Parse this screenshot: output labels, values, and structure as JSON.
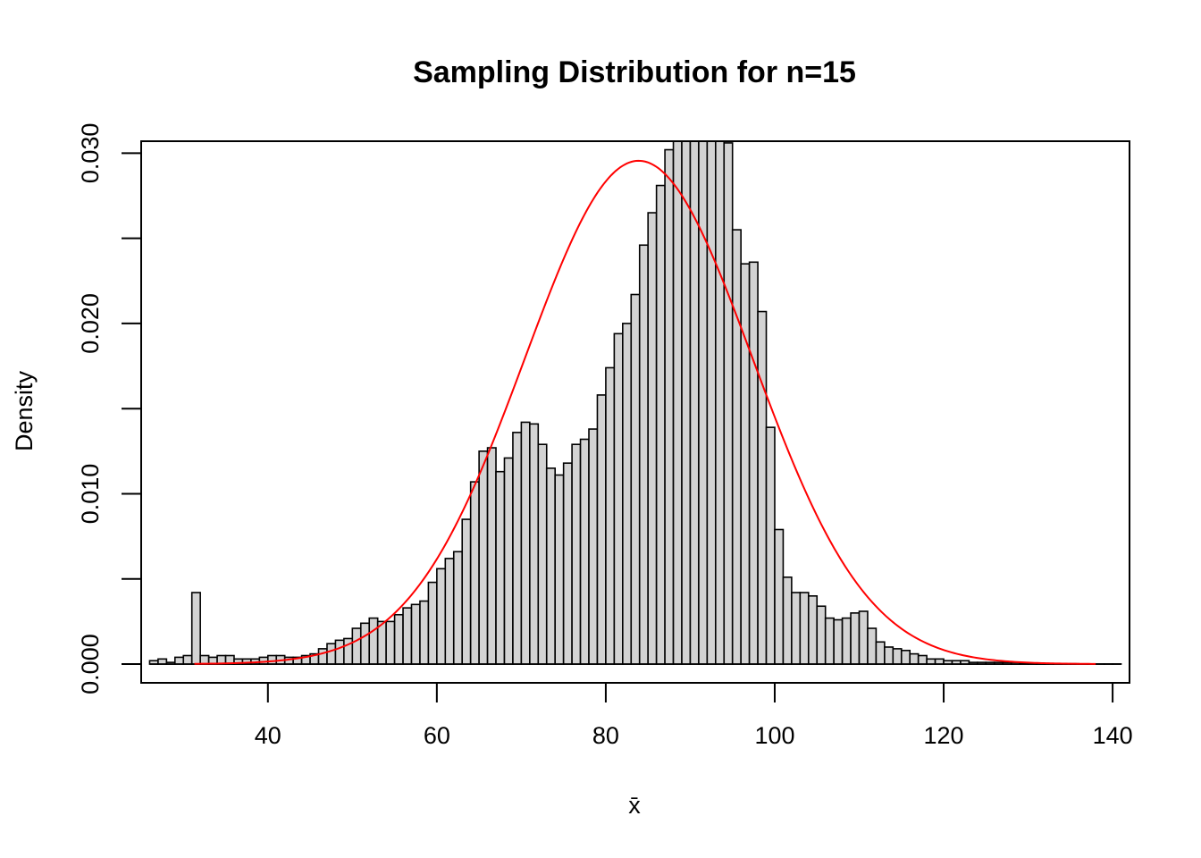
{
  "chart_data": {
    "type": "bar",
    "title": "Sampling Distribution for n=15",
    "xlabel": "x̄",
    "ylabel": "Density",
    "xlim": [
      25,
      142
    ],
    "ylim": [
      -0.0011,
      0.0307
    ],
    "x_ticks": [
      40,
      60,
      80,
      100,
      120,
      140
    ],
    "x_tick_labels": [
      "40",
      "60",
      "80",
      "100",
      "120",
      "140"
    ],
    "y_ticks": [
      0,
      0.005,
      0.01,
      0.015,
      0.02,
      0.025,
      0.03
    ],
    "y_tick_labels": [
      "0.000",
      "",
      "0.010",
      "",
      "0.020",
      "",
      "0.030"
    ],
    "bin_width": 1,
    "bin_start": 26,
    "bar_color": "#d3d3d3",
    "values": [
      0.0002,
      0.0003,
      0.0001,
      0.0004,
      0.0005,
      0.0042,
      0.0005,
      0.0004,
      0.0005,
      0.0005,
      0.0003,
      0.0003,
      0.0003,
      0.0004,
      0.0005,
      0.0005,
      0.0004,
      0.0004,
      0.0005,
      0.0006,
      0.0009,
      0.0012,
      0.0014,
      0.0015,
      0.0021,
      0.0024,
      0.0027,
      0.0025,
      0.0025,
      0.0029,
      0.0033,
      0.0035,
      0.0037,
      0.0048,
      0.0056,
      0.0062,
      0.0066,
      0.0085,
      0.0107,
      0.0125,
      0.0127,
      0.0113,
      0.0121,
      0.0136,
      0.0142,
      0.0141,
      0.0129,
      0.0115,
      0.0111,
      0.0118,
      0.0129,
      0.0132,
      0.0138,
      0.0158,
      0.0174,
      0.0194,
      0.02,
      0.0217,
      0.0246,
      0.0265,
      0.0281,
      0.0302,
      0.0318,
      0.0331,
      0.0341,
      0.0339,
      0.0336,
      0.0331,
      0.0306,
      0.0255,
      0.0235,
      0.0236,
      0.0207,
      0.0139,
      0.0079,
      0.0051,
      0.0042,
      0.0042,
      0.004,
      0.0034,
      0.0027,
      0.0026,
      0.0027,
      0.003,
      0.0031,
      0.0021,
      0.0013,
      0.001,
      0.0009,
      0.0008,
      0.0006,
      0.0005,
      0.0003,
      0.0003,
      0.0002,
      0.0002,
      0.0002,
      0.0001,
      0.0001,
      0.0001,
      0.0001,
      0.0001,
      0.0001,
      5e-05,
      5e-05,
      3e-05,
      3e-05,
      2e-05,
      2e-05,
      2e-05,
      1e-05,
      1e-05,
      1e-05,
      1e-05,
      1e-05
    ],
    "normal_curve": {
      "color": "#ff0000",
      "mean": 83.9,
      "sd": 13.5,
      "x_range": [
        31.3,
        138
      ]
    }
  }
}
